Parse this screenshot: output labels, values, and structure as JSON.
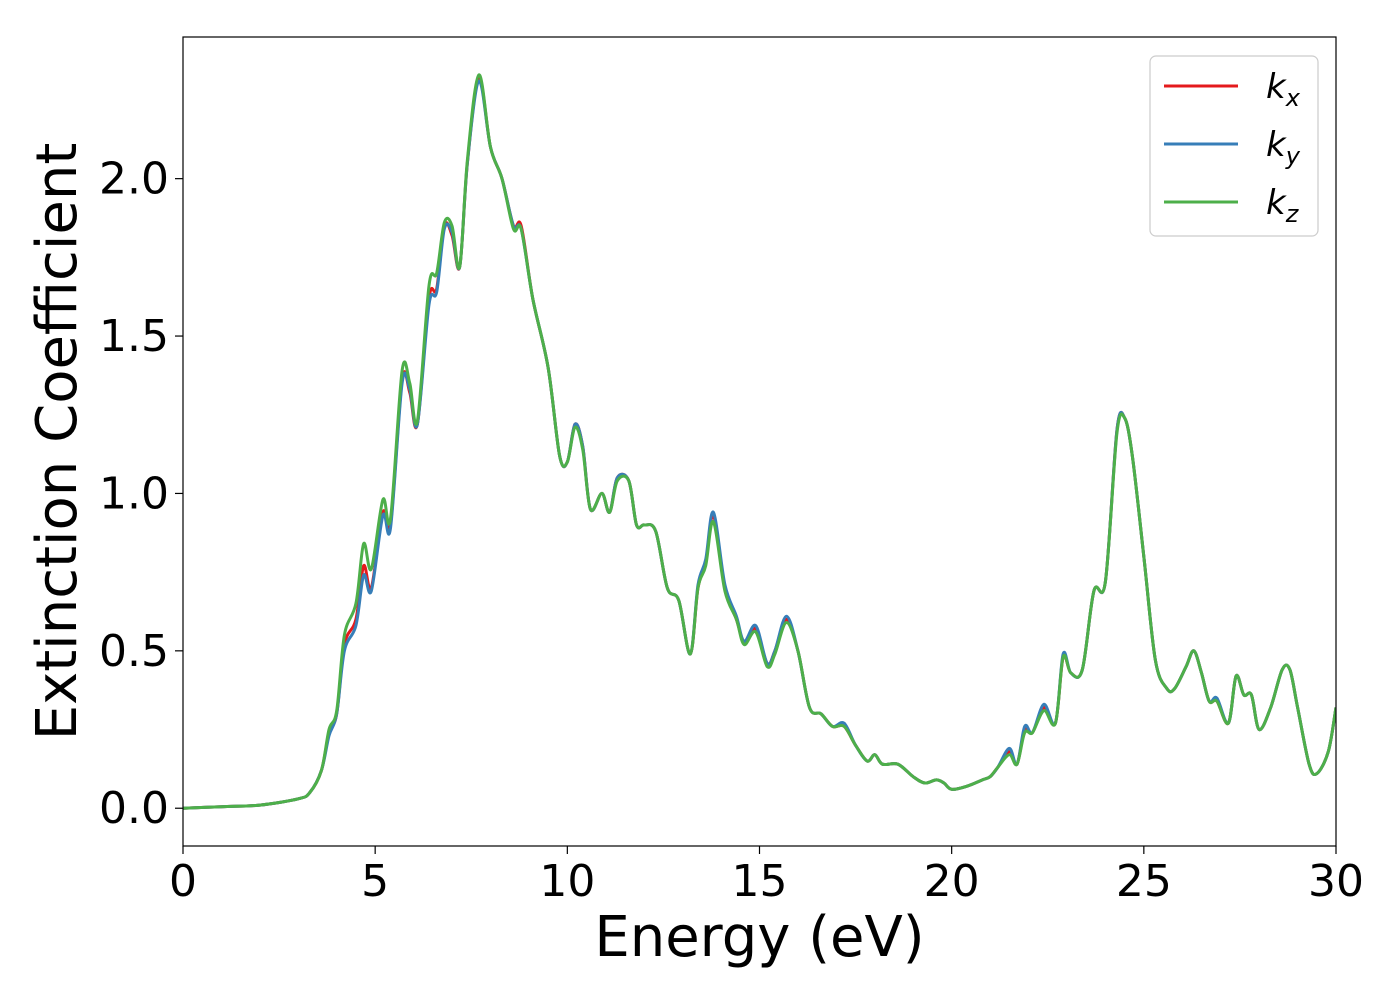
{
  "chart_data": {
    "type": "line",
    "title": "",
    "xlabel": "Energy (eV)",
    "ylabel": "Extinction Coefficient",
    "xlim": [
      0,
      30
    ],
    "ylim": [
      -0.12,
      2.45
    ],
    "xticks": [
      0,
      5,
      10,
      15,
      20,
      25,
      30
    ],
    "xtick_labels": [
      "0",
      "5",
      "10",
      "15",
      "20",
      "25",
      "30"
    ],
    "yticks": [
      0.0,
      0.5,
      1.0,
      1.5,
      2.0
    ],
    "ytick_labels": [
      "0.0",
      "0.5",
      "1.0",
      "1.5",
      "2.0"
    ],
    "grid": false,
    "legend_position": "top-right",
    "x": [
      0,
      1,
      2,
      3,
      3.3,
      3.6,
      3.8,
      4.0,
      4.2,
      4.5,
      4.7,
      4.9,
      5.2,
      5.4,
      5.7,
      5.9,
      6.1,
      6.4,
      6.6,
      6.8,
      7.0,
      7.2,
      7.4,
      7.7,
      8.0,
      8.3,
      8.6,
      8.8,
      9.1,
      9.5,
      9.8,
      10.0,
      10.2,
      10.4,
      10.6,
      10.9,
      11.1,
      11.3,
      11.6,
      11.8,
      12.0,
      12.3,
      12.6,
      12.9,
      13.2,
      13.4,
      13.6,
      13.8,
      14.1,
      14.4,
      14.6,
      14.9,
      15.2,
      15.4,
      15.7,
      16.0,
      16.3,
      16.6,
      16.9,
      17.2,
      17.5,
      17.8,
      18.0,
      18.2,
      18.6,
      19.0,
      19.3,
      19.6,
      19.8,
      20.0,
      20.4,
      20.8,
      21.0,
      21.2,
      21.5,
      21.7,
      21.9,
      22.1,
      22.4,
      22.7,
      22.9,
      23.1,
      23.4,
      23.7,
      24.0,
      24.3,
      24.5,
      24.7,
      25.0,
      25.3,
      25.6,
      25.8,
      26.1,
      26.3,
      26.5,
      26.7,
      26.9,
      27.2,
      27.4,
      27.6,
      27.8,
      28.0,
      28.3,
      28.6,
      28.8,
      29.0,
      29.3,
      29.5,
      29.8,
      30.0
    ],
    "series": [
      {
        "name": "k",
        "sub": "x",
        "color": "#e41a1c",
        "values": [
          0.0,
          0.005,
          0.01,
          0.03,
          0.05,
          0.12,
          0.24,
          0.3,
          0.52,
          0.6,
          0.77,
          0.7,
          0.94,
          0.9,
          1.36,
          1.32,
          1.22,
          1.62,
          1.65,
          1.85,
          1.82,
          1.72,
          2.05,
          2.32,
          2.1,
          2.0,
          1.85,
          1.85,
          1.62,
          1.4,
          1.12,
          1.1,
          1.22,
          1.15,
          0.95,
          1.0,
          0.94,
          1.05,
          1.04,
          0.9,
          0.9,
          0.88,
          0.7,
          0.66,
          0.49,
          0.7,
          0.78,
          0.93,
          0.7,
          0.6,
          0.53,
          0.57,
          0.46,
          0.5,
          0.6,
          0.5,
          0.32,
          0.3,
          0.26,
          0.26,
          0.2,
          0.15,
          0.17,
          0.14,
          0.14,
          0.1,
          0.08,
          0.09,
          0.08,
          0.06,
          0.07,
          0.09,
          0.1,
          0.13,
          0.18,
          0.14,
          0.25,
          0.24,
          0.32,
          0.27,
          0.48,
          0.43,
          0.44,
          0.69,
          0.72,
          1.2,
          1.24,
          1.12,
          0.8,
          0.47,
          0.38,
          0.38,
          0.45,
          0.5,
          0.43,
          0.34,
          0.34,
          0.27,
          0.42,
          0.36,
          0.36,
          0.25,
          0.32,
          0.44,
          0.44,
          0.32,
          0.14,
          0.11,
          0.18,
          0.32
        ]
      },
      {
        "name": "k",
        "sub": "y",
        "color": "#377eb8",
        "values": [
          0.0,
          0.005,
          0.01,
          0.03,
          0.05,
          0.12,
          0.23,
          0.3,
          0.5,
          0.58,
          0.74,
          0.69,
          0.93,
          0.89,
          1.35,
          1.33,
          1.22,
          1.6,
          1.64,
          1.84,
          1.83,
          1.72,
          2.05,
          2.31,
          2.1,
          2.0,
          1.85,
          1.84,
          1.62,
          1.4,
          1.12,
          1.1,
          1.22,
          1.15,
          0.95,
          1.0,
          0.94,
          1.05,
          1.04,
          0.9,
          0.9,
          0.88,
          0.7,
          0.66,
          0.49,
          0.71,
          0.79,
          0.94,
          0.71,
          0.61,
          0.53,
          0.58,
          0.46,
          0.5,
          0.61,
          0.5,
          0.32,
          0.3,
          0.26,
          0.27,
          0.2,
          0.15,
          0.17,
          0.14,
          0.14,
          0.1,
          0.08,
          0.09,
          0.08,
          0.06,
          0.07,
          0.09,
          0.1,
          0.13,
          0.19,
          0.14,
          0.26,
          0.24,
          0.33,
          0.27,
          0.49,
          0.43,
          0.44,
          0.69,
          0.72,
          1.2,
          1.24,
          1.12,
          0.8,
          0.47,
          0.38,
          0.38,
          0.45,
          0.5,
          0.43,
          0.34,
          0.35,
          0.27,
          0.42,
          0.36,
          0.36,
          0.25,
          0.32,
          0.44,
          0.44,
          0.32,
          0.14,
          0.11,
          0.18,
          0.32
        ]
      },
      {
        "name": "k",
        "sub": "z",
        "color": "#4daf4a",
        "values": [
          0.0,
          0.005,
          0.01,
          0.03,
          0.05,
          0.12,
          0.25,
          0.31,
          0.55,
          0.65,
          0.84,
          0.76,
          0.98,
          0.92,
          1.39,
          1.35,
          1.23,
          1.66,
          1.7,
          1.86,
          1.85,
          1.72,
          2.06,
          2.33,
          2.1,
          2.0,
          1.84,
          1.84,
          1.62,
          1.4,
          1.12,
          1.1,
          1.21,
          1.14,
          0.95,
          1.0,
          0.94,
          1.04,
          1.04,
          0.9,
          0.9,
          0.88,
          0.7,
          0.66,
          0.49,
          0.7,
          0.77,
          0.91,
          0.69,
          0.6,
          0.52,
          0.56,
          0.45,
          0.49,
          0.59,
          0.5,
          0.32,
          0.3,
          0.26,
          0.26,
          0.2,
          0.15,
          0.17,
          0.14,
          0.14,
          0.1,
          0.08,
          0.09,
          0.08,
          0.06,
          0.07,
          0.09,
          0.1,
          0.13,
          0.17,
          0.14,
          0.24,
          0.24,
          0.31,
          0.27,
          0.48,
          0.43,
          0.44,
          0.69,
          0.72,
          1.19,
          1.24,
          1.12,
          0.8,
          0.47,
          0.38,
          0.38,
          0.45,
          0.5,
          0.43,
          0.34,
          0.34,
          0.27,
          0.42,
          0.36,
          0.36,
          0.25,
          0.32,
          0.44,
          0.44,
          0.32,
          0.14,
          0.11,
          0.18,
          0.32
        ]
      }
    ]
  }
}
